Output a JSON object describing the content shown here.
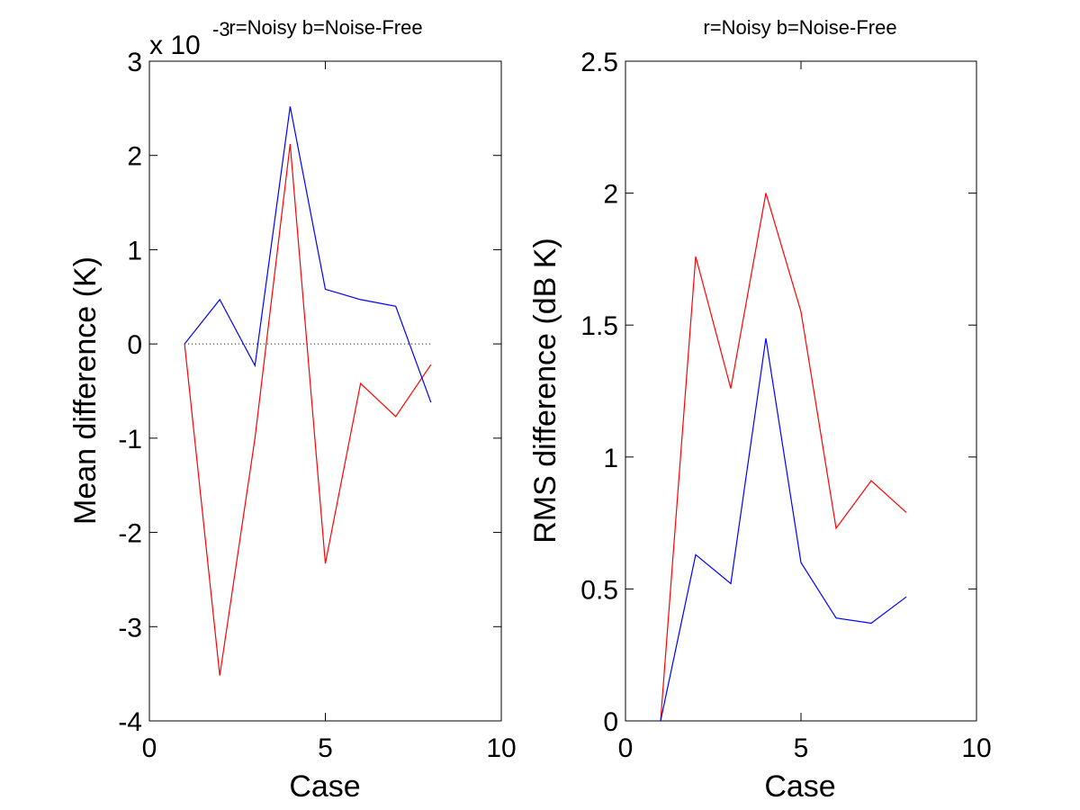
{
  "chart_data": [
    {
      "type": "line",
      "title": "r=Noisy  b=Noise-Free",
      "xlabel": "Case",
      "ylabel": "Mean difference (K)",
      "exponent_label": "x 10",
      "exponent_power": "-3",
      "xlim": [
        0,
        10
      ],
      "ylim": [
        -4,
        3
      ],
      "xticks": [
        0,
        5,
        10
      ],
      "xtick_labels": [
        "0",
        "5",
        "10"
      ],
      "yticks": [
        -4,
        -3,
        -2,
        -1,
        0,
        1,
        2,
        3
      ],
      "ytick_labels": [
        "-4",
        "-3",
        "-2",
        "-1",
        "0",
        "1",
        "2",
        "3"
      ],
      "reference_line": {
        "y": 0,
        "x": [
          1,
          8
        ],
        "style": "dotted"
      },
      "grid": false,
      "series": [
        {
          "color": "#ff0000",
          "x": [
            1,
            2,
            3,
            4,
            5,
            6,
            7,
            8
          ],
          "y": [
            0,
            -3.52,
            -1.0,
            2.12,
            -2.33,
            -0.42,
            -0.77,
            -0.22
          ]
        },
        {
          "color": "#0000ff",
          "x": [
            1,
            2,
            3,
            4,
            5,
            6,
            7,
            8
          ],
          "y": [
            0,
            0.47,
            -0.23,
            2.52,
            0.58,
            0.47,
            0.4,
            -0.62
          ]
        }
      ]
    },
    {
      "type": "line",
      "title": "r=Noisy  b=Noise-Free",
      "xlabel": "Case",
      "ylabel": "RMS difference (dB K)",
      "xlim": [
        0,
        10
      ],
      "ylim": [
        0,
        2.5
      ],
      "xticks": [
        0,
        5,
        10
      ],
      "xtick_labels": [
        "0",
        "5",
        "10"
      ],
      "yticks": [
        0,
        0.5,
        1,
        1.5,
        2,
        2.5
      ],
      "ytick_labels": [
        "0",
        "0.5",
        "1",
        "1.5",
        "2",
        "2.5"
      ],
      "grid": false,
      "series": [
        {
          "color": "#ff0000",
          "x": [
            1,
            2,
            3,
            4,
            5,
            6,
            7,
            8
          ],
          "y": [
            0,
            1.76,
            1.26,
            2.0,
            1.55,
            0.73,
            0.91,
            0.79
          ]
        },
        {
          "color": "#0000ff",
          "x": [
            1,
            2,
            3,
            4,
            5,
            6,
            7,
            8
          ],
          "y": [
            0,
            0.63,
            0.52,
            1.45,
            0.6,
            0.39,
            0.37,
            0.47
          ]
        }
      ]
    }
  ]
}
